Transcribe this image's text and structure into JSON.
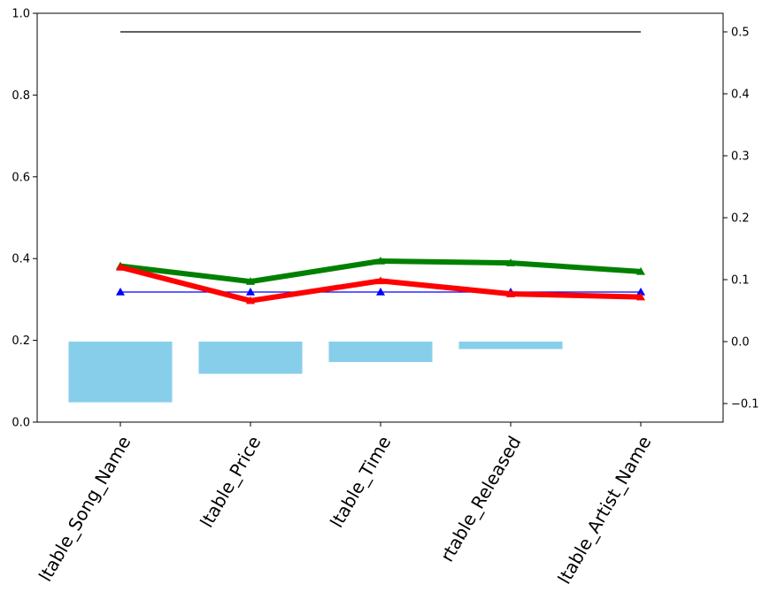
{
  "chart_data": {
    "type": "bar",
    "title": "",
    "xlabel": "",
    "ylabel": "",
    "categories": [
      "ltable_Song_Name",
      "ltable_Price",
      "ltable_Time",
      "rtable_Released",
      "ltable_Artist_Name"
    ],
    "left_axis": {
      "ylim": [
        0,
        1.0
      ],
      "ticks": [
        "0.0",
        "0.2",
        "0.4",
        "0.6",
        "0.8",
        "1.0"
      ]
    },
    "right_axis": {
      "ylim": [
        -0.13,
        0.53
      ],
      "ticks": [
        "−0.1",
        "0.0",
        "0.1",
        "0.2",
        "0.3",
        "0.4",
        "0.5"
      ]
    },
    "bars": {
      "axis": "right",
      "color": "#87ceeb",
      "values": [
        -0.098,
        -0.052,
        -0.033,
        -0.012,
        0.0
      ]
    },
    "series": [
      {
        "axis": "right",
        "color": "#000000",
        "marker": "none",
        "values": [
          0.5,
          0.5,
          0.5,
          0.5,
          0.5
        ]
      },
      {
        "axis": "right",
        "color": "#0000ff",
        "marker": "triangle",
        "values": [
          0.08,
          0.08,
          0.08,
          0.08,
          0.08
        ]
      },
      {
        "axis": "right",
        "color": "#008000",
        "marker": "triangle",
        "values": [
          0.122,
          0.097,
          0.13,
          0.127,
          0.113
        ]
      },
      {
        "axis": "right",
        "color": "#ff0000",
        "marker": "triangle",
        "values": [
          0.12,
          0.066,
          0.098,
          0.077,
          0.072
        ]
      }
    ],
    "grid": false,
    "legend": "none"
  }
}
